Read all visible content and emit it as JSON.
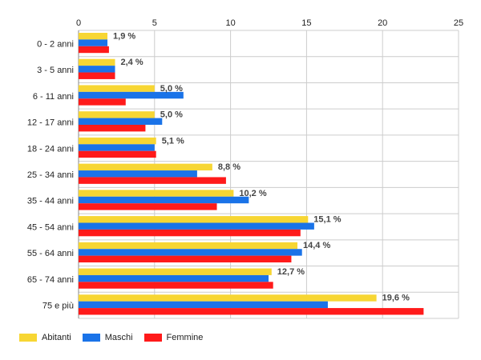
{
  "chart_data": {
    "type": "bar",
    "orientation": "horizontal",
    "categories": [
      "0 - 2 anni",
      "3 - 5 anni",
      "6 - 11 anni",
      "12 - 17 anni",
      "18 - 24 anni",
      "25 - 34 anni",
      "35 - 44 anni",
      "45 - 54 anni",
      "55 - 64 anni",
      "65 - 74 anni",
      "75 e più"
    ],
    "series": [
      {
        "name": "Abitanti",
        "color": "#f7d633",
        "values": [
          1.9,
          2.4,
          5.0,
          5.0,
          5.1,
          8.8,
          10.2,
          15.1,
          14.4,
          12.7,
          19.6
        ]
      },
      {
        "name": "Maschi",
        "color": "#1a73e8",
        "values": [
          1.9,
          2.4,
          6.9,
          5.5,
          5.0,
          7.8,
          11.2,
          15.5,
          14.7,
          12.5,
          16.4
        ]
      },
      {
        "name": "Femmine",
        "color": "#ff1a1a",
        "values": [
          2.0,
          2.4,
          3.1,
          4.4,
          5.1,
          9.7,
          9.1,
          14.6,
          14.0,
          12.8,
          22.7
        ]
      }
    ],
    "data_labels": [
      "1,9 %",
      "2,4 %",
      "5,0 %",
      "5,0 %",
      "5,1 %",
      "8,8 %",
      "10,2 %",
      "15,1 %",
      "14,4 %",
      "12,7 %",
      "19,6 %"
    ],
    "x_ticks": [
      "0",
      "5",
      "10",
      "15",
      "20",
      "25"
    ],
    "xlim": [
      0,
      25
    ],
    "grid": true,
    "legend_position": "bottom-left",
    "title": "",
    "xlabel": "",
    "ylabel": ""
  },
  "legend": [
    {
      "label": "Abitanti",
      "color": "#f7d633"
    },
    {
      "label": "Maschi",
      "color": "#1a73e8"
    },
    {
      "label": "Femmine",
      "color": "#ff1a1a"
    }
  ]
}
